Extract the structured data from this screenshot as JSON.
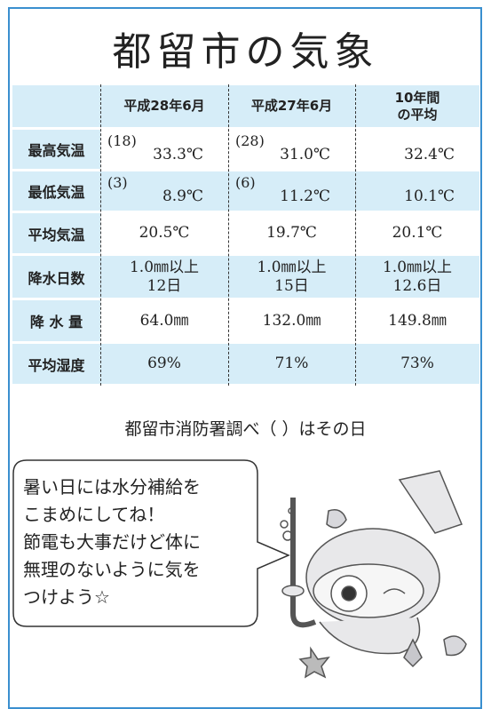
{
  "title": "都留市の気象",
  "table": {
    "columns": [
      [
        "平成28年6月"
      ],
      [
        "平成27年6月"
      ],
      [
        "10年間",
        "の平均"
      ]
    ],
    "rows": [
      {
        "label": "最高気温",
        "cells": [
          {
            "note": "(18)",
            "value": "33.3℃"
          },
          {
            "note": "(28)",
            "value": "31.0℃"
          },
          {
            "value": "32.4℃"
          }
        ]
      },
      {
        "label": "最低気温",
        "cells": [
          {
            "note": "(3)",
            "value": "8.9℃"
          },
          {
            "note": "(6)",
            "value": "11.2℃"
          },
          {
            "value": "10.1℃"
          }
        ]
      },
      {
        "label": "平均気温",
        "cells": [
          [
            "20.5℃"
          ],
          [
            "19.7℃"
          ],
          [
            "20.1℃"
          ]
        ]
      },
      {
        "label": "降水日数",
        "cells": [
          [
            "1.0㎜以上",
            "12日"
          ],
          [
            "1.0㎜以上",
            "15日"
          ],
          [
            "1.0㎜以上",
            "12.6日"
          ]
        ]
      },
      {
        "label": "降 水 量",
        "cells": [
          [
            "64.0㎜"
          ],
          [
            "132.0㎜"
          ],
          [
            "149.8㎜"
          ]
        ]
      },
      {
        "label": "平均湿度",
        "cells": [
          [
            "69%"
          ],
          [
            "71%"
          ],
          [
            "73%"
          ]
        ]
      }
    ]
  },
  "footnote": "都留市消防署調べ（ ）はその日",
  "bubble": [
    "暑い日には水分補給を",
    "こまめにしてね！",
    "節電も大事だけど体に",
    "無理のないように気を",
    "つけよう☆"
  ]
}
